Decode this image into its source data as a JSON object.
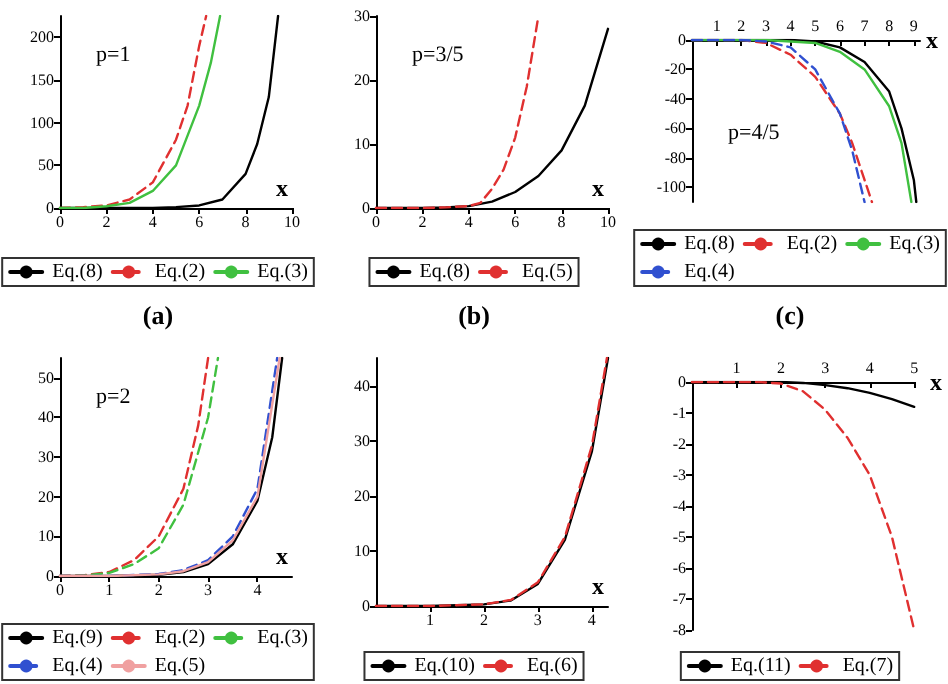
{
  "chart_data": [
    {
      "type": "line",
      "subtitle": "(a)",
      "xlabel": "x",
      "annotations": [
        "p=1"
      ],
      "xlim": [
        0,
        10
      ],
      "xticks": [
        0,
        2,
        4,
        6,
        8,
        10
      ],
      "ylim": [
        0,
        225
      ],
      "yticks": [
        0,
        50,
        100,
        150,
        200
      ],
      "legend": "bottom",
      "marker": "none",
      "grid": false,
      "series": [
        {
          "name": "Eq.(8)",
          "color": "#000000",
          "line_style": "solid",
          "x": [
            0,
            2,
            4,
            5,
            6,
            7,
            8,
            8.5,
            9,
            9.4
          ],
          "values": [
            0,
            0,
            0,
            1,
            3,
            10,
            40,
            75,
            130,
            225
          ]
        },
        {
          "name": "Eq.(2)",
          "color": "#e03030",
          "line_style": "dashed",
          "x": [
            0,
            1,
            2,
            3,
            4,
            5,
            5.5,
            6,
            6.3
          ],
          "values": [
            0,
            1,
            3,
            10,
            30,
            80,
            120,
            190,
            225
          ]
        },
        {
          "name": "Eq.(3)",
          "color": "#40c040",
          "line_style": "solid",
          "x": [
            0,
            1,
            2,
            3,
            4,
            5,
            6,
            6.5,
            6.9
          ],
          "values": [
            0,
            0,
            2,
            6,
            20,
            50,
            120,
            170,
            225
          ]
        }
      ]
    },
    {
      "type": "line",
      "subtitle": "(b)",
      "xlabel": "x",
      "annotations": [
        "p=3/5"
      ],
      "xlim": [
        0,
        10
      ],
      "xticks": [
        0,
        2,
        4,
        6,
        8,
        10
      ],
      "ylim": [
        0,
        30
      ],
      "yticks": [
        0,
        10,
        20,
        30
      ],
      "legend": "bottom",
      "marker": "none",
      "grid": false,
      "series": [
        {
          "name": "Eq.(8)",
          "color": "#000000",
          "line_style": "solid",
          "x": [
            0,
            2,
            3,
            4,
            5,
            6,
            7,
            8,
            9,
            10
          ],
          "values": [
            0,
            0,
            0.1,
            0.3,
            1,
            2.5,
            5,
            9,
            16,
            28
          ]
        },
        {
          "name": "Eq.(5)",
          "color": "#e03030",
          "line_style": "dashed",
          "x": [
            0,
            2,
            3,
            4,
            4.5,
            5,
            5.5,
            6,
            6.5,
            7
          ],
          "values": [
            0,
            0,
            0.1,
            0.3,
            0.8,
            3,
            6,
            11,
            19,
            30
          ]
        }
      ]
    },
    {
      "type": "line",
      "subtitle": "(c)",
      "xlabel": "x",
      "annotations": [
        "p=4/5"
      ],
      "xlim": [
        0,
        9.25
      ],
      "xticks": [
        1,
        2,
        3,
        4,
        5,
        6,
        7,
        8,
        9
      ],
      "ylim": [
        -110,
        0
      ],
      "yticks": [
        0,
        -20,
        -40,
        -60,
        -80,
        -100
      ],
      "legend": "bottom",
      "marker": "none",
      "grid": false,
      "series": [
        {
          "name": "Eq.(8)",
          "color": "#000000",
          "line_style": "solid",
          "x": [
            0,
            3,
            4,
            5,
            6,
            7,
            8,
            8.5,
            9,
            9.1
          ],
          "values": [
            0,
            0,
            0,
            -1,
            -5,
            -15,
            -35,
            -60,
            -95,
            -110
          ]
        },
        {
          "name": "Eq.(2)",
          "color": "#e03030",
          "line_style": "dashed",
          "x": [
            0,
            2,
            3,
            4,
            5,
            6,
            6.5,
            7,
            7.3
          ],
          "values": [
            0,
            0,
            -2,
            -10,
            -25,
            -50,
            -70,
            -95,
            -110
          ]
        },
        {
          "name": "Eq.(3)",
          "color": "#40c040",
          "line_style": "solid",
          "x": [
            0,
            3,
            4,
            5,
            6,
            7,
            8,
            8.5,
            8.9
          ],
          "values": [
            0,
            0,
            -1,
            -2,
            -8,
            -20,
            -45,
            -70,
            -110
          ]
        },
        {
          "name": "Eq.(4)",
          "color": "#3050d0",
          "line_style": "dashed",
          "x": [
            0,
            2,
            3,
            4,
            5,
            6,
            6.5,
            7
          ],
          "values": [
            0,
            0,
            -1,
            -5,
            -20,
            -50,
            -75,
            -110
          ]
        }
      ]
    },
    {
      "type": "line",
      "xlabel": "x",
      "annotations": [
        "p=2"
      ],
      "xlim": [
        0,
        4.7
      ],
      "xticks": [
        0,
        1,
        2,
        3,
        4
      ],
      "ylim": [
        0,
        55
      ],
      "yticks": [
        0,
        10,
        20,
        30,
        40,
        50
      ],
      "legend": "bottom",
      "marker": "none",
      "grid": false,
      "series": [
        {
          "name": "Eq.(9)",
          "color": "#000000",
          "line_style": "solid",
          "x": [
            0,
            1,
            2,
            2.5,
            3,
            3.5,
            4,
            4.3,
            4.5
          ],
          "values": [
            0,
            0,
            0.3,
            1,
            3,
            8,
            19,
            35,
            55
          ]
        },
        {
          "name": "Eq.(2)",
          "color": "#e03030",
          "line_style": "dashed",
          "x": [
            0,
            0.5,
            1,
            1.5,
            2,
            2.5,
            2.8,
            3
          ],
          "values": [
            0,
            0.2,
            1,
            4,
            10,
            22,
            38,
            55
          ]
        },
        {
          "name": "Eq.(3)",
          "color": "#40c040",
          "line_style": "dashed",
          "x": [
            0,
            0.5,
            1,
            1.5,
            2,
            2.5,
            3,
            3.2
          ],
          "values": [
            0,
            0.1,
            0.8,
            3,
            7,
            18,
            40,
            55
          ]
        },
        {
          "name": "Eq.(4)",
          "color": "#3050d0",
          "line_style": "dashed",
          "x": [
            0,
            1,
            2,
            2.5,
            3,
            3.5,
            4,
            4.4
          ],
          "values": [
            0,
            0,
            0.5,
            1.5,
            4,
            10,
            22,
            55
          ]
        },
        {
          "name": "Eq.(5)",
          "color": "#f0a0a0",
          "line_style": "solid",
          "x": [
            0,
            1,
            2,
            2.5,
            3,
            3.5,
            4,
            4.45
          ],
          "values": [
            0,
            0,
            0.4,
            1.2,
            3.5,
            9,
            20,
            55
          ]
        }
      ]
    },
    {
      "type": "line",
      "xlabel": "x",
      "xlim": [
        0,
        4.3
      ],
      "xticks": [
        1,
        2,
        3,
        4
      ],
      "ylim": [
        0,
        45
      ],
      "yticks": [
        0,
        10,
        20,
        30,
        40
      ],
      "legend": "bottom",
      "marker": "none",
      "grid": false,
      "series": [
        {
          "name": "Eq.(10)",
          "color": "#000000",
          "line_style": "solid",
          "x": [
            0,
            1,
            2,
            2.5,
            3,
            3.5,
            4,
            4.3
          ],
          "values": [
            0,
            0,
            0.3,
            1,
            4,
            12,
            28,
            45
          ]
        },
        {
          "name": "Eq.(6)",
          "color": "#e03030",
          "line_style": "dashed",
          "x": [
            0,
            1,
            2,
            2.5,
            3,
            3.5,
            4,
            4.28
          ],
          "values": [
            0,
            0,
            0.3,
            1.1,
            4.3,
            12.5,
            29,
            45
          ]
        }
      ]
    },
    {
      "type": "line",
      "xlabel": "x",
      "xlim": [
        0,
        5
      ],
      "xticks": [
        1,
        2,
        3,
        4,
        5
      ],
      "ylim": [
        -8,
        0
      ],
      "yticks": [
        0,
        -1,
        -2,
        -3,
        -4,
        -5,
        -6,
        -7,
        -8
      ],
      "legend": "bottom",
      "marker": "none",
      "grid": false,
      "series": [
        {
          "name": "Eq.(11)",
          "color": "#000000",
          "line_style": "solid",
          "x": [
            0,
            2,
            2.5,
            3,
            3.5,
            4,
            4.5,
            5
          ],
          "values": [
            0,
            0,
            -0.03,
            -0.1,
            -0.2,
            -0.35,
            -0.55,
            -0.8
          ]
        },
        {
          "name": "Eq.(7)",
          "color": "#e03030",
          "line_style": "dashed",
          "x": [
            0,
            1.5,
            2,
            2.5,
            3,
            3.5,
            4,
            4.5,
            5
          ],
          "values": [
            0,
            0,
            -0.05,
            -0.3,
            -0.9,
            -1.8,
            -3,
            -5,
            -8
          ]
        }
      ]
    }
  ]
}
